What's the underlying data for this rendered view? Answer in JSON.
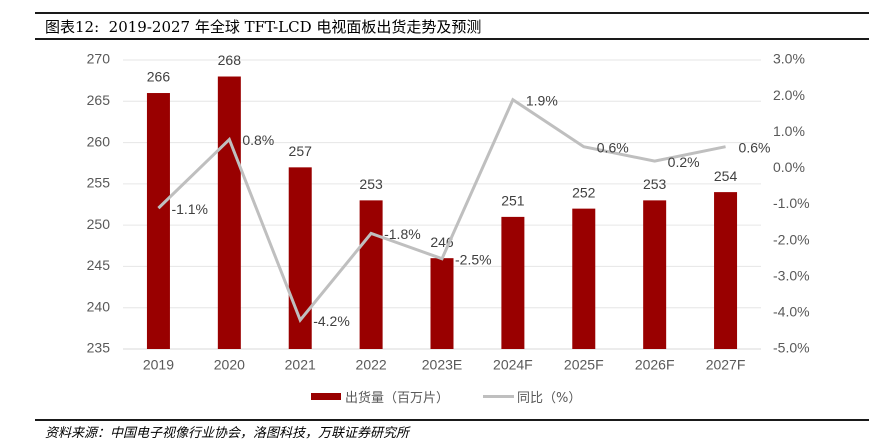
{
  "title": "图表12:  2019-2027 年全球 TFT-LCD 电视面板出货走势及预测",
  "source": "资料来源：中国电子视像行业协会，洛图科技，万联证券研究所",
  "chart_data": {
    "type": "bar",
    "title": "2019-2027 年全球 TFT-LCD 电视面板出货走势及预测",
    "categories": [
      "2019",
      "2020",
      "2021",
      "2022",
      "2023E",
      "2024F",
      "2025F",
      "2026F",
      "2027F"
    ],
    "series": [
      {
        "name": "出货量（百万片）",
        "type": "bar",
        "axis": "left",
        "color": "#990000",
        "values": [
          266,
          268,
          257,
          253,
          246,
          251,
          252,
          253,
          254
        ],
        "labels": [
          "266",
          "268",
          "257",
          "253",
          "246",
          "251",
          "252",
          "253",
          "254"
        ]
      },
      {
        "name": "同比（%）",
        "type": "line",
        "axis": "right",
        "color": "#BFBFBF",
        "values": [
          -1.1,
          0.8,
          -4.2,
          -1.8,
          -2.5,
          1.9,
          0.6,
          0.2,
          0.6
        ],
        "labels": [
          "-1.1%",
          "0.8%",
          "-4.2%",
          "-1.8%",
          "-2.5%",
          "1.9%",
          "0.6%",
          "0.2%",
          "0.6%"
        ]
      }
    ],
    "y_left": {
      "label": "",
      "min": 235,
      "max": 270,
      "ticks": [
        235,
        240,
        245,
        250,
        255,
        260,
        265,
        270
      ],
      "tick_labels": [
        "235",
        "240",
        "245",
        "250",
        "255",
        "260",
        "265",
        "270"
      ]
    },
    "y_right": {
      "label": "",
      "min": -5.0,
      "max": 3.0,
      "ticks": [
        -5,
        -4,
        -3,
        -2,
        -1,
        0,
        1,
        2,
        3
      ],
      "tick_labels": [
        "-5.0%",
        "-4.0%",
        "-3.0%",
        "-2.0%",
        "-1.0%",
        "0.0%",
        "1.0%",
        "2.0%",
        "3.0%"
      ]
    },
    "xlabel": "",
    "grid": true,
    "legend": "bottom-center"
  }
}
